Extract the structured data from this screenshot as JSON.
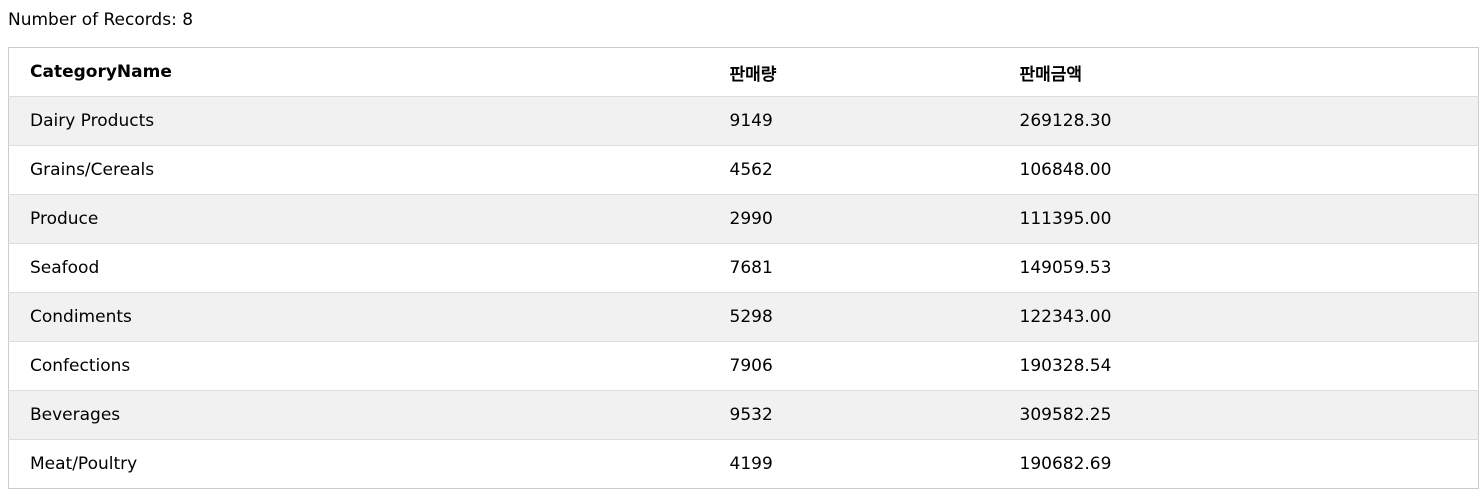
{
  "record_count_text": "Number of Records: 8",
  "table": {
    "headers": [
      "CategoryName",
      "판매량",
      "판매금액"
    ],
    "rows": [
      [
        "Dairy Products",
        "9149",
        "269128.30"
      ],
      [
        "Grains/Cereals",
        "4562",
        "106848.00"
      ],
      [
        "Produce",
        "2990",
        "111395.00"
      ],
      [
        "Seafood",
        "7681",
        "149059.53"
      ],
      [
        "Condiments",
        "5298",
        "122343.00"
      ],
      [
        "Confections",
        "7906",
        "190328.54"
      ],
      [
        "Beverages",
        "9532",
        "309582.25"
      ],
      [
        "Meat/Poultry",
        "4199",
        "190682.69"
      ]
    ]
  },
  "colors": {
    "stripe": "#f1f1f1",
    "border": "#cccccc"
  }
}
